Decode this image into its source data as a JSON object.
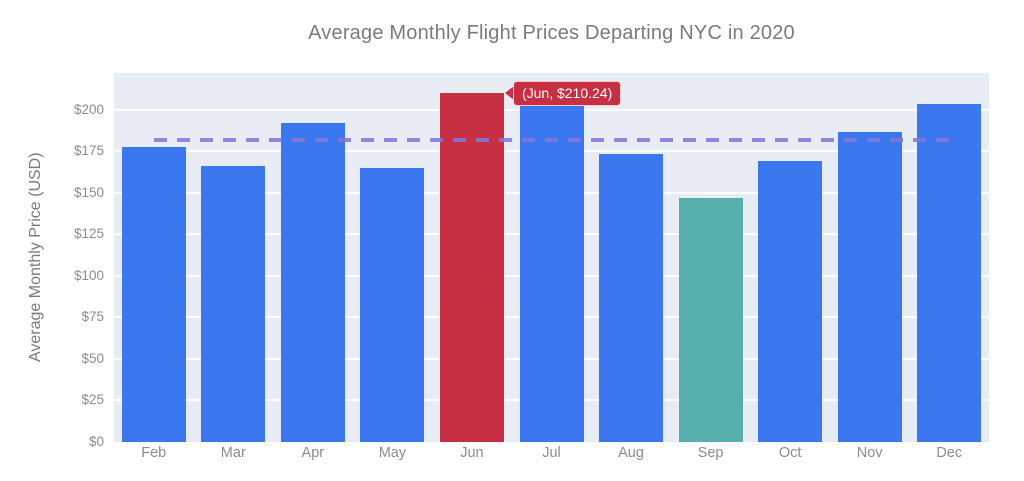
{
  "chart_data": {
    "type": "bar",
    "title": "Average Monthly Flight Prices Departing NYC in 2020",
    "xlabel": "",
    "ylabel": "Average Monthly Price (USD)",
    "categories": [
      "Feb",
      "Mar",
      "Apr",
      "May",
      "Jun",
      "Jul",
      "Aug",
      "Sep",
      "Oct",
      "Nov",
      "Dec"
    ],
    "values": [
      177.5,
      166.1,
      191.9,
      164.9,
      210.24,
      202.6,
      173.3,
      146.6,
      168.8,
      186.3,
      203.3
    ],
    "ylim": [
      0,
      222
    ],
    "grid": true,
    "legend": false,
    "plot_bg_color": "#e8edf5",
    "bar_default_color": "#3b78f0",
    "highlights": [
      {
        "category": "Jun",
        "color": "#c72f42",
        "note": "highest month"
      },
      {
        "category": "Sep",
        "color": "#55b0ac",
        "note": "lowest month"
      }
    ],
    "reference_line": {
      "value": 181.5,
      "style": "dashed",
      "color": "#8677d8"
    },
    "annotation": {
      "text": "(Jun, $210.24)",
      "target_category": "Jun",
      "bg_color": "#c72f42",
      "text_color": "#ffffff"
    },
    "yticks": [
      {
        "value": 0,
        "label": "$0"
      },
      {
        "value": 25,
        "label": "$25"
      },
      {
        "value": 50,
        "label": "$50"
      },
      {
        "value": 75,
        "label": "$75"
      },
      {
        "value": 100,
        "label": "$100"
      },
      {
        "value": 125,
        "label": "$125"
      },
      {
        "value": 150,
        "label": "$150"
      },
      {
        "value": 175,
        "label": "$175"
      },
      {
        "value": 200,
        "label": "$200"
      }
    ]
  }
}
